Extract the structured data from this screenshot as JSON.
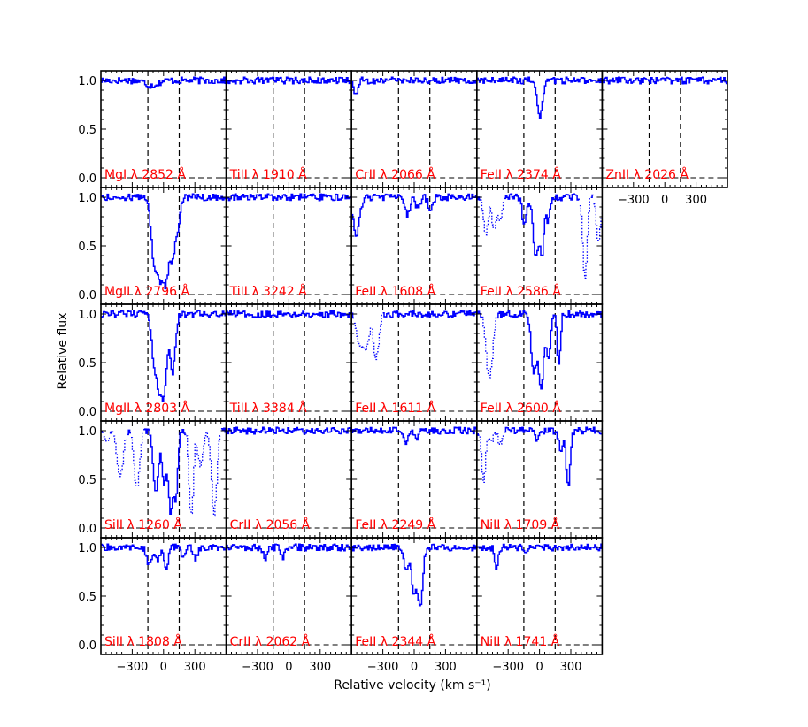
{
  "figure": {
    "ylabel": "Relative flux",
    "xlabel": "Relative velocity (km s⁻¹)"
  },
  "colors": {
    "spectrum": "#0000ff",
    "label": "#ff0000",
    "axis": "#000000",
    "guide": "#000000"
  },
  "chart_data": {
    "type": "line",
    "shared_x": {
      "ticks": [
        -300,
        0,
        300
      ],
      "range": [
        -600,
        600
      ]
    },
    "shared_y": {
      "ticks": [
        0.0,
        0.5,
        1.0
      ],
      "tick_labels": [
        "0.0",
        "0.5",
        "1.0"
      ],
      "range": [
        -0.1,
        1.1
      ]
    },
    "velocity_window": [
      -150,
      150
    ],
    "panels": [
      {
        "label": "MgI λ 2852 Å",
        "row": 0,
        "col": 0,
        "absorption": [
          {
            "v": -120,
            "depth": 0.05,
            "w": 60
          }
        ]
      },
      {
        "label": "TiII λ 1910 Å",
        "row": 0,
        "col": 1,
        "absorption": []
      },
      {
        "label": "CrII λ 2066 Å",
        "row": 0,
        "col": 2,
        "absorption": [
          {
            "v": -570,
            "depth": 0.15,
            "w": 20
          }
        ]
      },
      {
        "label": "FeII λ 2374 Å",
        "row": 0,
        "col": 3,
        "absorption": [
          {
            "v": 0,
            "depth": 0.38,
            "w": 25
          }
        ]
      },
      {
        "label": "ZnII λ 2026 Å",
        "row": 0,
        "col": 4,
        "absorption": []
      },
      {
        "label": "MgII λ 2796 Å",
        "row": 1,
        "col": 0,
        "absorption": [
          {
            "v": -100,
            "depth": 0.6,
            "w": 25
          },
          {
            "v": -40,
            "depth": 0.8,
            "w": 30
          },
          {
            "v": 20,
            "depth": 0.75,
            "w": 25
          },
          {
            "v": 80,
            "depth": 0.6,
            "w": 25
          },
          {
            "v": 130,
            "depth": 0.3,
            "w": 20
          }
        ]
      },
      {
        "label": "TiII λ 3242 Å",
        "row": 1,
        "col": 1,
        "absorption": []
      },
      {
        "label": "FeII λ 1608 Å",
        "row": 1,
        "col": 2,
        "absorption": [
          {
            "v": -560,
            "depth": 0.4,
            "w": 30
          },
          {
            "v": -70,
            "depth": 0.2,
            "w": 20
          },
          {
            "v": 30,
            "depth": 0.12,
            "w": 20
          },
          {
            "v": 150,
            "depth": 0.15,
            "w": 20
          }
        ]
      },
      {
        "label": "FeII λ 2586 Å",
        "row": 1,
        "col": 3,
        "absorption": [
          {
            "v": -150,
            "depth": 0.3,
            "w": 20
          },
          {
            "v": -40,
            "depth": 0.6,
            "w": 25
          },
          {
            "v": 20,
            "depth": 0.55,
            "w": 20
          },
          {
            "v": 80,
            "depth": 0.25,
            "w": 15
          }
        ],
        "blends": [
          {
            "v": -520,
            "depth": 0.4,
            "w": 20
          },
          {
            "v": -440,
            "depth": 0.35,
            "w": 20
          },
          {
            "v": -380,
            "depth": 0.25,
            "w": 20
          },
          {
            "v": 430,
            "depth": 0.85,
            "w": 20
          },
          {
            "v": 560,
            "depth": 0.45,
            "w": 20
          }
        ]
      },
      {
        "label": "MgII λ 2803 Å",
        "row": 2,
        "col": 0,
        "absorption": [
          {
            "v": -100,
            "depth": 0.45,
            "w": 20
          },
          {
            "v": -50,
            "depth": 0.7,
            "w": 25
          },
          {
            "v": 0,
            "depth": 0.75,
            "w": 25
          },
          {
            "v": 80,
            "depth": 0.6,
            "w": 25
          }
        ]
      },
      {
        "label": "TiII λ 3384 Å",
        "row": 2,
        "col": 1,
        "absorption": []
      },
      {
        "label": "FeII λ 1611 Å",
        "row": 2,
        "col": 2,
        "absorption": [],
        "blends": [
          {
            "v": -520,
            "depth": 0.35,
            "w": 30
          },
          {
            "v": -460,
            "depth": 0.3,
            "w": 25
          },
          {
            "v": -370,
            "depth": 0.45,
            "w": 25
          }
        ]
      },
      {
        "label": "FeII λ 2600 Å",
        "row": 2,
        "col": 3,
        "absorption": [
          {
            "v": -60,
            "depth": 0.6,
            "w": 25
          },
          {
            "v": 10,
            "depth": 0.75,
            "w": 25
          },
          {
            "v": 80,
            "depth": 0.45,
            "w": 20
          },
          {
            "v": 180,
            "depth": 0.55,
            "w": 15
          }
        ],
        "blends": [
          {
            "v": -500,
            "depth": 0.4,
            "w": 25
          },
          {
            "v": -470,
            "depth": 0.4,
            "w": 25
          }
        ]
      },
      {
        "label": "SiII λ 1260 Å",
        "row": 3,
        "col": 0,
        "absorption": [
          {
            "v": -80,
            "depth": 0.65,
            "w": 25
          },
          {
            "v": 0,
            "depth": 0.55,
            "w": 20
          },
          {
            "v": 60,
            "depth": 0.8,
            "w": 20
          },
          {
            "v": 110,
            "depth": 0.7,
            "w": 20
          }
        ],
        "blends": [
          {
            "v": -550,
            "depth": 0.1,
            "w": 20
          },
          {
            "v": -420,
            "depth": 0.45,
            "w": 30
          },
          {
            "v": -260,
            "depth": 0.6,
            "w": 25
          },
          {
            "v": 260,
            "depth": 0.9,
            "w": 20
          },
          {
            "v": 350,
            "depth": 0.35,
            "w": 25
          },
          {
            "v": 480,
            "depth": 0.85,
            "w": 25
          }
        ]
      },
      {
        "label": "CrII λ 2056 Å",
        "row": 3,
        "col": 1,
        "absorption": []
      },
      {
        "label": "FeII λ 2249 Å",
        "row": 3,
        "col": 2,
        "absorption": [
          {
            "v": -80,
            "depth": 0.12,
            "w": 20
          },
          {
            "v": 20,
            "depth": 0.08,
            "w": 20
          }
        ]
      },
      {
        "label": "NiII λ 1709 Å",
        "row": 3,
        "col": 3,
        "absorption": [
          {
            "v": -30,
            "depth": 0.08,
            "w": 20
          },
          {
            "v": 200,
            "depth": 0.2,
            "w": 20
          },
          {
            "v": 270,
            "depth": 0.55,
            "w": 20
          }
        ],
        "blends": [
          {
            "v": -540,
            "depth": 0.5,
            "w": 20
          },
          {
            "v": -470,
            "depth": 0.1,
            "w": 20
          },
          {
            "v": -380,
            "depth": 0.15,
            "w": 20
          }
        ]
      },
      {
        "label": "SiII λ 1808 Å",
        "row": 4,
        "col": 0,
        "absorption": [
          {
            "v": -140,
            "depth": 0.18,
            "w": 25
          },
          {
            "v": -60,
            "depth": 0.12,
            "w": 25
          },
          {
            "v": 20,
            "depth": 0.22,
            "w": 20
          },
          {
            "v": 180,
            "depth": 0.1,
            "w": 20
          },
          {
            "v": 300,
            "depth": 0.12,
            "w": 20
          }
        ]
      },
      {
        "label": "CrII λ 2062 Å",
        "row": 4,
        "col": 1,
        "absorption": [
          {
            "v": -230,
            "depth": 0.12,
            "w": 20
          },
          {
            "v": -60,
            "depth": 0.1,
            "w": 20
          }
        ]
      },
      {
        "label": "FeII λ 2344 Å",
        "row": 4,
        "col": 2,
        "absorption": [
          {
            "v": -80,
            "depth": 0.25,
            "w": 20
          },
          {
            "v": -10,
            "depth": 0.45,
            "w": 20
          },
          {
            "v": 50,
            "depth": 0.62,
            "w": 25
          }
        ]
      },
      {
        "label": "NiII λ 1741 Å",
        "row": 4,
        "col": 3,
        "absorption": [
          {
            "v": -420,
            "depth": 0.25,
            "w": 15
          },
          {
            "v": -140,
            "depth": 0.05,
            "w": 20
          }
        ]
      }
    ]
  }
}
